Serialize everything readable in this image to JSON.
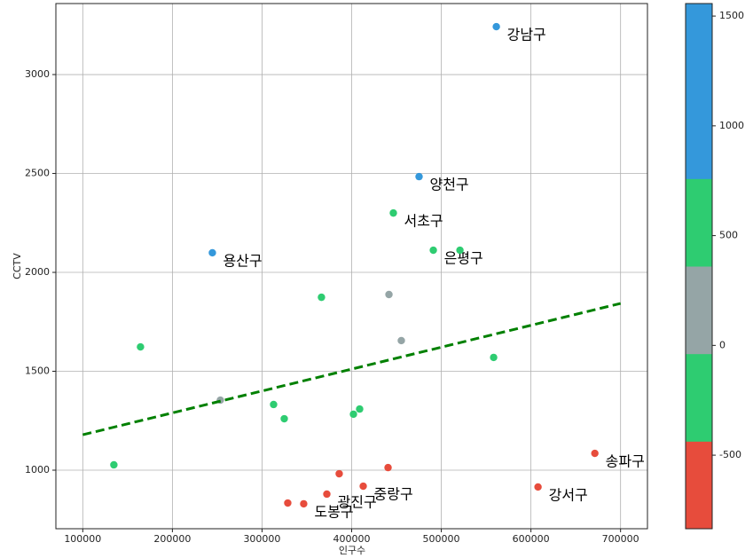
{
  "chart_data": {
    "type": "scatter",
    "xlabel": "인구수",
    "ylabel": "CCTV",
    "xlim": [
      70000,
      730000
    ],
    "ylim": [
      704,
      3359
    ],
    "xticks": [
      100000,
      200000,
      300000,
      400000,
      500000,
      600000,
      700000
    ],
    "yticks": [
      1000,
      1500,
      2000,
      2500,
      3000
    ],
    "grid": true,
    "x": [
      561400,
      475200,
      446500,
      491100,
      520800,
      244600,
      366300,
      441600,
      164400,
      455400,
      558400,
      253500,
      312900,
      324800,
      408900,
      402000,
      671300,
      440600,
      607900,
      386100,
      412900,
      372300,
      328700,
      346500,
      134700
    ],
    "values": [
      3242,
      2484,
      2300,
      2112,
      2112,
      2099,
      1874,
      1888,
      1623,
      1655,
      1570,
      1354,
      1332,
      1260,
      1309,
      1283,
      1085,
      1013,
      915,
      982,
      919,
      879,
      834,
      830,
      1027
    ],
    "colors": [
      "#3498db",
      "#3498db",
      "#2ecc71",
      "#2ecc71",
      "#2ecc71",
      "#3498db",
      "#2ecc71",
      "#95a5a6",
      "#2ecc71",
      "#95a5a6",
      "#2ecc71",
      "#95a5a6",
      "#2ecc71",
      "#2ecc71",
      "#2ecc71",
      "#2ecc71",
      "#e74c3c",
      "#e74c3c",
      "#e74c3c",
      "#e74c3c",
      "#e74c3c",
      "#e74c3c",
      "#e74c3c",
      "#e74c3c",
      "#2ecc71"
    ],
    "labels": [
      "강남구",
      "양천구",
      "서초구",
      "은평구",
      null,
      "용산구",
      null,
      null,
      null,
      null,
      null,
      null,
      null,
      null,
      null,
      null,
      "송파구",
      null,
      "강서구",
      null,
      "중랑구",
      "광진구",
      null,
      "도봉구",
      null
    ],
    "trend": {
      "x": [
        100000,
        700000
      ],
      "values": [
        1179,
        1843
      ],
      "color": "#008000"
    },
    "colorbar": {
      "clim": [
        -835,
        1557
      ],
      "ticks": [
        -500,
        0,
        500,
        1000,
        1500
      ],
      "colors": [
        "#e74c3c",
        "#2ecc71",
        "#95a5a6",
        "#2ecc71",
        "#3498db",
        "#3498db"
      ]
    }
  }
}
